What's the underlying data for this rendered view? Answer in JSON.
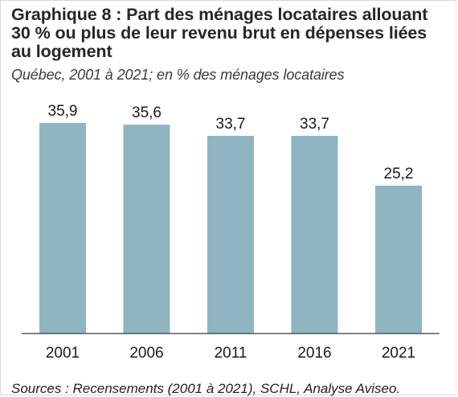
{
  "title": "Graphique 8 : Part des ménages locataires allouant 30 % ou plus de leur revenu brut en dépenses liées au logement",
  "subtitle": "Québec, 2001 à 2021; en % des ménages locataires",
  "source": "Sources : Recensements (2001 à 2021), SCHL, Analyse Aviseo.",
  "colors": {
    "bar": "#8fb5c0",
    "axis": "#3a3a3a",
    "text": "#1a1a1a"
  },
  "chart_data": {
    "type": "bar",
    "categories": [
      "2001",
      "2006",
      "2011",
      "2016",
      "2021"
    ],
    "values": [
      35.9,
      35.6,
      33.7,
      33.7,
      25.2
    ],
    "data_labels": [
      "35,9",
      "35,6",
      "33,7",
      "33,7",
      "25,2"
    ],
    "title": "Graphique 8 : Part des ménages locataires allouant 30 % ou plus de leur revenu brut en dépenses liées au logement",
    "subtitle": "Québec, 2001 à 2021; en % des ménages locataires",
    "xlabel": "",
    "ylabel": "",
    "ylim": [
      0,
      40
    ],
    "grid": false,
    "legend": "none",
    "y_axis_visible": false
  }
}
